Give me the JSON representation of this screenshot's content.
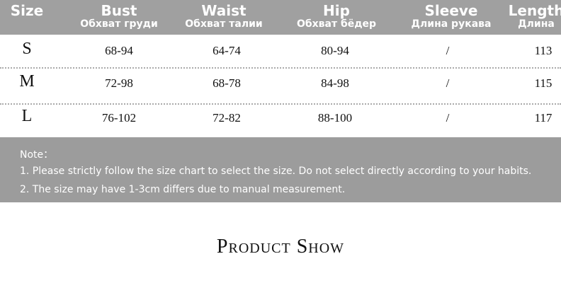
{
  "headers": [
    {
      "en": "Size",
      "ru": ""
    },
    {
      "en": "Bust",
      "ru": "Обхват груди"
    },
    {
      "en": "Waist",
      "ru": "Обхват талии"
    },
    {
      "en": "Hip",
      "ru": "Обхват бёдер"
    },
    {
      "en": "Sleeve",
      "ru": "Длина рукава"
    },
    {
      "en": "Length",
      "ru": "Длина"
    }
  ],
  "rows": [
    [
      "S",
      "68-94",
      "64-74",
      "80-94",
      "/",
      "113"
    ],
    [
      "M",
      "72-98",
      "68-78",
      "84-98",
      "/",
      "115"
    ],
    [
      "L",
      "76-102",
      "72-82",
      "88-100",
      "/",
      "117"
    ]
  ],
  "note": {
    "label": "Note：",
    "lines": [
      "1. Please strictly follow the size chart to select the size. Do not select directly according to your habits.",
      "2. The size may have 1-3cm differs due to manual measurement."
    ]
  },
  "section_title": "Product Show"
}
